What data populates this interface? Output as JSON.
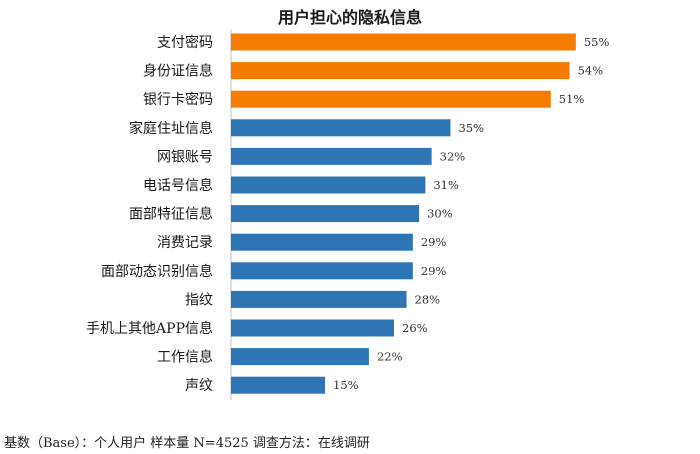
{
  "chart_data": {
    "type": "bar",
    "orientation": "horizontal",
    "title": "用户担心的隐私信息",
    "categories": [
      "支付密码",
      "身份证信息",
      "银行卡密码",
      "家庭住址信息",
      "网银账号",
      "电话号信息",
      "面部特征信息",
      "消费记录",
      "面部动态识别信息",
      "指纹",
      "手机上其他APP信息",
      "工作信息",
      "声纹"
    ],
    "values": [
      55,
      54,
      51,
      35,
      32,
      31,
      30,
      29,
      29,
      28,
      26,
      22,
      15
    ],
    "value_labels": [
      "55%",
      "54%",
      "51%",
      "35%",
      "32%",
      "31%",
      "30%",
      "29%",
      "29%",
      "28%",
      "26%",
      "22%",
      "15%"
    ],
    "colors": [
      "#F57C00",
      "#F57C00",
      "#F57C00",
      "#2E75B6",
      "#2E75B6",
      "#2E75B6",
      "#2E75B6",
      "#2E75B6",
      "#2E75B6",
      "#2E75B6",
      "#2E75B6",
      "#2E75B6",
      "#2E75B6"
    ],
    "xlim": [
      0,
      60
    ],
    "xlabel": "",
    "ylabel": "",
    "grid": false,
    "legend": "none"
  },
  "footnote": "基数（Base）：个人用户   样本量 N=4525  调查方法：在线调研"
}
